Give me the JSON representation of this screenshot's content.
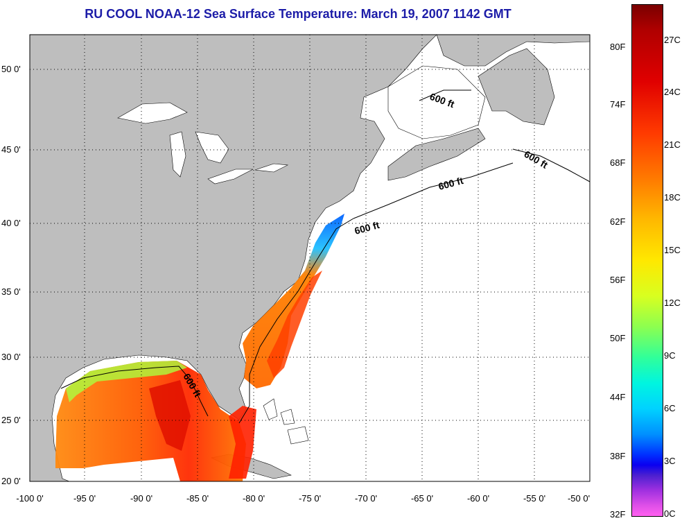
{
  "title": "RU COOL  NOAA-12  Sea Surface Temperature:  March 19, 2007 1142 GMT",
  "map": {
    "lon_range": [
      -100,
      -50
    ],
    "lat_range": [
      20,
      52.5
    ],
    "lon_ticks": [
      "-100 0'",
      "-95 0'",
      "-90 0'",
      "-85 0'",
      "-80 0'",
      "-75 0'",
      "-70 0'",
      "-65 0'",
      "-60 0'",
      "-55 0'",
      "-50 0'"
    ],
    "lat_ticks": [
      "50 0'",
      "45 0'",
      "40 0'",
      "35 0'",
      "30 0'",
      "25 0'",
      "20 0'"
    ],
    "contour_label": "600 ft",
    "land_color": "#bebebe",
    "ocean_color": "#ffffff",
    "grid": "dotted"
  },
  "colorbar": {
    "fahrenheit_labels": [
      "80F",
      "74F",
      "68F",
      "62F",
      "56F",
      "50F",
      "44F",
      "38F",
      "32F"
    ],
    "celsius_labels": [
      "27C",
      "24C",
      "21C",
      "18C",
      "15C",
      "12C",
      "9C",
      "6C",
      "3C",
      "0C"
    ]
  }
}
